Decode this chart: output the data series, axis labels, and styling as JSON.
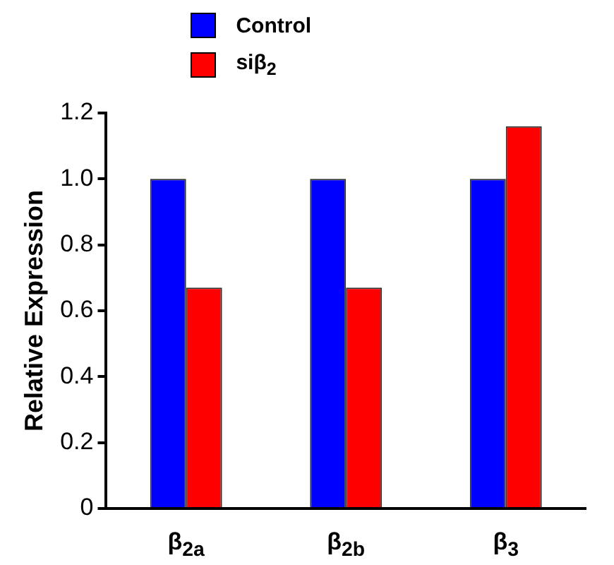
{
  "chart_data": {
    "type": "bar",
    "ylabel": "Relative Expression",
    "categories": [
      "β$_{2a}$",
      "β$_{2b}$",
      "β$_{3}$"
    ],
    "series": [
      {
        "name": "Control",
        "color": "#0000ff",
        "values": [
          1.0,
          1.0,
          1.0
        ]
      },
      {
        "name": "siβ$_{2}$",
        "color": "#ff0000",
        "values": [
          0.67,
          0.67,
          1.16
        ]
      }
    ],
    "ylim": [
      0,
      1.2
    ],
    "yticks": [
      0,
      0.2,
      0.4,
      0.6,
      0.8,
      {
        "value": 1,
        "label": "1.0"
      },
      1.2
    ],
    "grid": false,
    "legend": "top"
  }
}
